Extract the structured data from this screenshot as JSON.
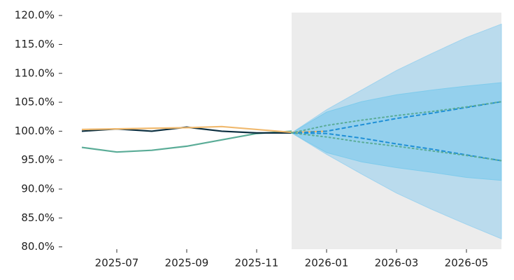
{
  "chart_data": {
    "type": "line",
    "x": [
      "2025-06",
      "2025-07",
      "2025-08",
      "2025-09",
      "2025-10",
      "2025-11",
      "2025-12",
      "2026-01",
      "2026-02",
      "2026-03",
      "2026-04",
      "2026-05",
      "2026-06"
    ],
    "xlim": [
      "2025-06",
      "2026-06"
    ],
    "xticks": [
      "2025-07",
      "2025-09",
      "2025-11",
      "2026-01",
      "2026-03",
      "2026-05"
    ],
    "ylim": [
      79.6,
      120.5
    ],
    "yticks": [
      {
        "value": 80,
        "label": "80.0%"
      },
      {
        "value": 85,
        "label": "85.0%"
      },
      {
        "value": 90,
        "label": "90.0%"
      },
      {
        "value": 95,
        "label": "95.0%"
      },
      {
        "value": 100,
        "label": "100.0%"
      },
      {
        "value": 105,
        "label": "105.0%"
      },
      {
        "value": 110,
        "label": "110.0%"
      },
      {
        "value": 115,
        "label": "115.0%"
      },
      {
        "value": 120,
        "label": "120.0%"
      }
    ],
    "shaded_region": {
      "from": "2025-12",
      "to": "2026-06",
      "color": "#ececec"
    },
    "bands": [
      {
        "color": "#9fd3ee",
        "opacity": 0.65,
        "low": [
          null,
          null,
          null,
          null,
          null,
          null,
          99.7,
          96.0,
          92.6,
          89.3,
          86.5,
          83.9,
          81.4
        ],
        "high": [
          null,
          null,
          null,
          null,
          null,
          null,
          99.7,
          103.7,
          107.1,
          110.5,
          113.4,
          116.2,
          118.5
        ]
      },
      {
        "color": "#7fcbec",
        "opacity": 0.65,
        "low": [
          null,
          null,
          null,
          null,
          null,
          null,
          99.7,
          96.3,
          94.7,
          93.7,
          92.9,
          92.0,
          91.5
        ],
        "high": [
          null,
          null,
          null,
          null,
          null,
          null,
          99.7,
          103.3,
          105.1,
          106.3,
          107.1,
          107.8,
          108.4
        ]
      }
    ],
    "series": [
      {
        "color": "#5aac97",
        "dash": "solid",
        "values": [
          97.2,
          96.4,
          96.7,
          97.4,
          98.5,
          99.6,
          100.0,
          null,
          null,
          null,
          null,
          null,
          null
        ]
      },
      {
        "color": "#0b2e3f",
        "dash": "solid",
        "values": [
          100.0,
          100.4,
          100.0,
          100.7,
          100.0,
          99.7,
          99.7,
          null,
          null,
          null,
          null,
          null,
          null
        ]
      },
      {
        "color": "#f0b96e",
        "dash": "solid",
        "values": [
          100.3,
          100.4,
          100.5,
          100.6,
          100.8,
          100.3,
          99.8,
          100.0,
          null,
          null,
          null,
          null,
          null
        ]
      },
      {
        "color": "#1f8fd6",
        "dash": "dashed",
        "values": [
          null,
          null,
          null,
          null,
          null,
          null,
          99.7,
          100.0,
          101.1,
          102.2,
          103.1,
          104.1,
          105.1
        ]
      },
      {
        "color": "#1f8fd6",
        "dash": "dashed",
        "values": [
          null,
          null,
          null,
          null,
          null,
          null,
          99.7,
          99.6,
          98.8,
          97.8,
          96.9,
          95.9,
          94.9
        ]
      },
      {
        "color": "#5aac97",
        "dash": "dotted",
        "values": [
          null,
          null,
          null,
          null,
          null,
          null,
          99.7,
          101.0,
          101.9,
          102.7,
          103.4,
          104.2,
          105.1
        ]
      },
      {
        "color": "#5aac97",
        "dash": "dotted",
        "values": [
          null,
          null,
          null,
          null,
          null,
          null,
          99.7,
          99.0,
          98.1,
          97.4,
          96.6,
          95.8,
          94.9
        ]
      }
    ]
  }
}
